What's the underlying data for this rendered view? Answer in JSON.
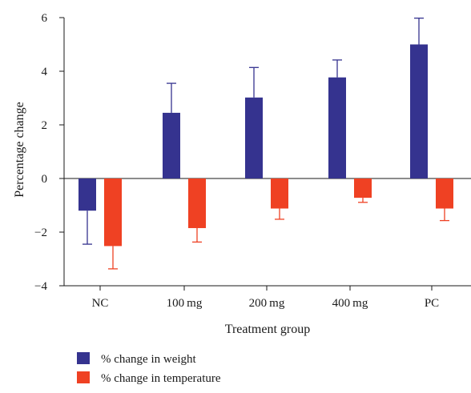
{
  "chart_data": {
    "type": "bar",
    "xlabel": "Treatment group",
    "ylabel": "Percentage change",
    "ylim": [
      -4,
      6
    ],
    "yticks": [
      6,
      4,
      2,
      0,
      -2,
      -4
    ],
    "yticks_labels": [
      "6",
      "4",
      "2",
      "0",
      "−2",
      "−4"
    ],
    "categories": [
      "NC",
      "100 mg",
      "200 mg",
      "400 mg",
      "PC"
    ],
    "series": [
      {
        "name": "% change in weight",
        "color": "#35338f",
        "values": [
          -1.2,
          2.45,
          3.02,
          3.77,
          5.0
        ],
        "errors": [
          1.25,
          1.1,
          1.12,
          0.65,
          0.98
        ]
      },
      {
        "name": "% change in temperature",
        "color": "#ef4123",
        "values": [
          -2.52,
          -1.85,
          -1.12,
          -0.72,
          -1.12
        ],
        "errors": [
          0.85,
          0.52,
          0.4,
          0.17,
          0.45
        ]
      }
    ],
    "grid": false,
    "legend_position": "bottom-left"
  }
}
